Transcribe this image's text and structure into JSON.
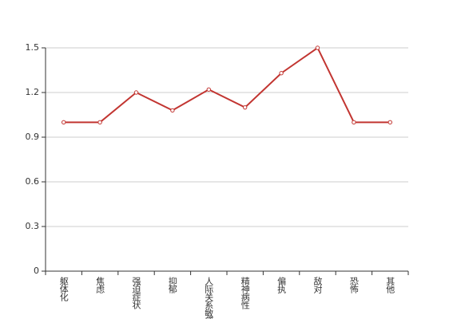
{
  "chart_data": {
    "type": "line",
    "categories": [
      "躯体化",
      "焦虑",
      "强迫症状",
      "抑郁",
      "人际关系敏感",
      "精神病性",
      "偏执",
      "敌对",
      "恐怖",
      "其他"
    ],
    "values": [
      1.0,
      1.0,
      1.2,
      1.08,
      1.22,
      1.1,
      1.33,
      1.5,
      1.0,
      1.0
    ],
    "color": "#c23531",
    "ylim": [
      0,
      1.5
    ],
    "yticks": [
      0,
      0.3,
      0.6,
      0.9,
      1.2,
      1.5
    ],
    "grid": true
  }
}
